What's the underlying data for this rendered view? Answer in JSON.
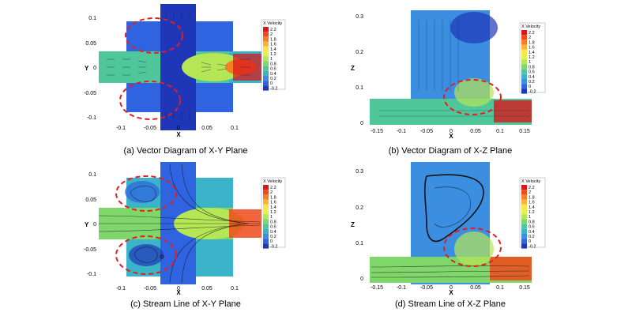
{
  "panels": [
    {
      "caption": "(a) Vector Diagram of X-Y Plane",
      "xlabel": "X",
      "ylabel": "Y",
      "xticks": [
        "-0.1",
        "-0.05",
        "0",
        "0.05",
        "0.1"
      ],
      "yticks": [
        "0.1",
        "0.05",
        "0",
        "-0.05",
        "-0.1"
      ],
      "legend_title": "X Velocity"
    },
    {
      "caption": "(b) Vector Diagram of X-Z Plane",
      "xlabel": "X",
      "ylabel": "Z",
      "xticks": [
        "-0.15",
        "-0.1",
        "-0.05",
        "0",
        "0.05",
        "0.1",
        "0.15"
      ],
      "yticks": [
        "0.3",
        "0.2",
        "0.1",
        "0"
      ],
      "legend_title": "X Velocity"
    },
    {
      "caption": "(c) Stream Line of X-Y Plane",
      "xlabel": "X",
      "ylabel": "Y",
      "xticks": [
        "-0.1",
        "-0.05",
        "0",
        "0.05",
        "0.1"
      ],
      "yticks": [
        "0.1",
        "0.05",
        "0",
        "-0.05",
        "-0.1"
      ],
      "legend_title": "X Velocity"
    },
    {
      "caption": "(d) Stream Line of X-Z Plane",
      "xlabel": "X",
      "ylabel": "Z",
      "xticks": [
        "-0.15",
        "-0.1",
        "-0.05",
        "0",
        "0.05",
        "0.1",
        "0.15"
      ],
      "yticks": [
        "0.3",
        "0.2",
        "0.1",
        "0"
      ],
      "legend_title": "X Velocity"
    }
  ],
  "legend_levels": [
    "2.2",
    "2",
    "1.8",
    "1.6",
    "1.4",
    "1.2",
    "1",
    "0.8",
    "0.6",
    "0.4",
    "0.2",
    "0",
    "-0.2"
  ],
  "legend_colors": [
    "#d7191c",
    "#f04a1a",
    "#f57f24",
    "#fbb33a",
    "#ffe34d",
    "#e6f24a",
    "#b5e655",
    "#7fd66a",
    "#4fc79a",
    "#3bb3c9",
    "#3b8ee0",
    "#2f63e0",
    "#1f36b8"
  ],
  "colors": {
    "background_field": "#2f63e0",
    "high_velocity": "#d7191c",
    "annotation": "#e02020"
  }
}
